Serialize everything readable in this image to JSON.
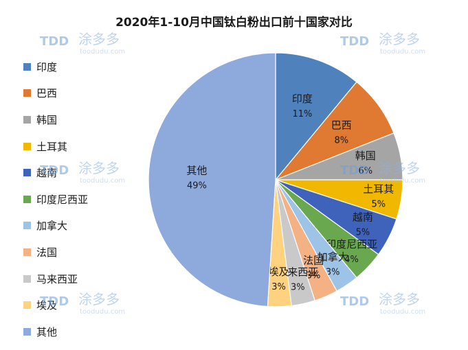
{
  "chart_data": {
    "type": "pie",
    "title": "2020年1-10月中国钛白粉出口前十国家对比",
    "legend_position": "left",
    "slices": [
      {
        "name": "印度",
        "value": 11,
        "label": "11%",
        "color": "#4f81bd"
      },
      {
        "name": "巴西",
        "value": 8,
        "label": "8%",
        "color": "#e07a33"
      },
      {
        "name": "韩国",
        "value": 6,
        "label": "6%",
        "color": "#a5a5a5"
      },
      {
        "name": "土耳其",
        "value": 5,
        "label": "5%",
        "color": "#f0b800"
      },
      {
        "name": "越南",
        "value": 5,
        "label": "5%",
        "color": "#3f63ba"
      },
      {
        "name": "印度尼西亚",
        "value": 4,
        "label": "4%",
        "color": "#6aa84f"
      },
      {
        "name": "加拿大",
        "value": 3,
        "label": "3%",
        "color": "#9dc3e6"
      },
      {
        "name": "法国",
        "value": 3,
        "label": "3%",
        "color": "#f4b183"
      },
      {
        "name": "马来西亚",
        "value": 3,
        "label": "3%",
        "color": "#c9c9c9"
      },
      {
        "name": "埃及",
        "value": 3,
        "label": "3%",
        "color": "#ffd27f"
      },
      {
        "name": "其他",
        "value": 49,
        "label": "49%",
        "color": "#8ea9db"
      }
    ]
  },
  "watermark": {
    "logo": "TDD",
    "name": "涂多多",
    "site": "toodudu.com"
  }
}
